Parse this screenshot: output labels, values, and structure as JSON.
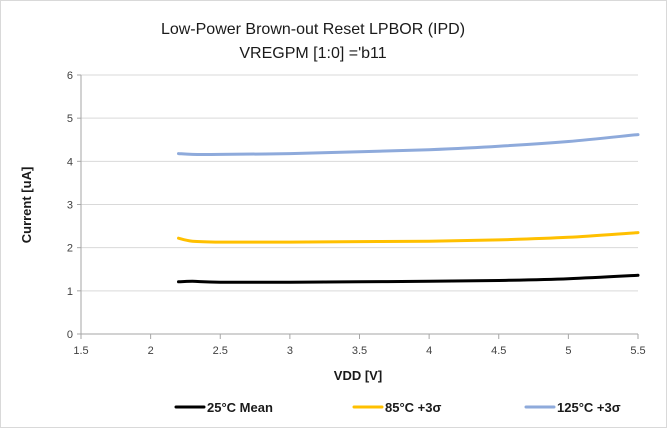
{
  "chart_data": {
    "type": "line",
    "title": "Low-Power Brown-out Reset LPBOR (IPD)",
    "subtitle": "VREGPM [1:0] ='b11",
    "xlabel": "VDD [V]",
    "ylabel": "Current [uA]",
    "xlim": [
      1.5,
      5.5
    ],
    "ylim": [
      0,
      6
    ],
    "x_ticks": [
      "1.5",
      "2",
      "2.5",
      "3",
      "3.5",
      "4",
      "4.5",
      "5",
      "5.5"
    ],
    "y_ticks": [
      "0",
      "1",
      "2",
      "3",
      "4",
      "5",
      "6"
    ],
    "grid": "horizontal",
    "legend_position": "bottom",
    "series": [
      {
        "name": "25°C Mean",
        "color": "#000000",
        "x": [
          2.2,
          2.3,
          2.5,
          3.0,
          3.5,
          4.0,
          4.5,
          5.0,
          5.5
        ],
        "y": [
          1.21,
          1.22,
          1.2,
          1.2,
          1.21,
          1.22,
          1.24,
          1.28,
          1.36
        ]
      },
      {
        "name": "85°C +3σ",
        "color": "#ffc000",
        "x": [
          2.2,
          2.3,
          2.5,
          3.0,
          3.5,
          4.0,
          4.5,
          5.0,
          5.5
        ],
        "y": [
          2.22,
          2.15,
          2.13,
          2.13,
          2.14,
          2.15,
          2.18,
          2.24,
          2.35
        ]
      },
      {
        "name": "125°C +3σ",
        "color": "#8eaadb",
        "x": [
          2.2,
          2.3,
          2.5,
          3.0,
          3.5,
          4.0,
          4.5,
          5.0,
          5.5
        ],
        "y": [
          4.18,
          4.16,
          4.16,
          4.18,
          4.22,
          4.27,
          4.35,
          4.46,
          4.62
        ]
      }
    ]
  }
}
